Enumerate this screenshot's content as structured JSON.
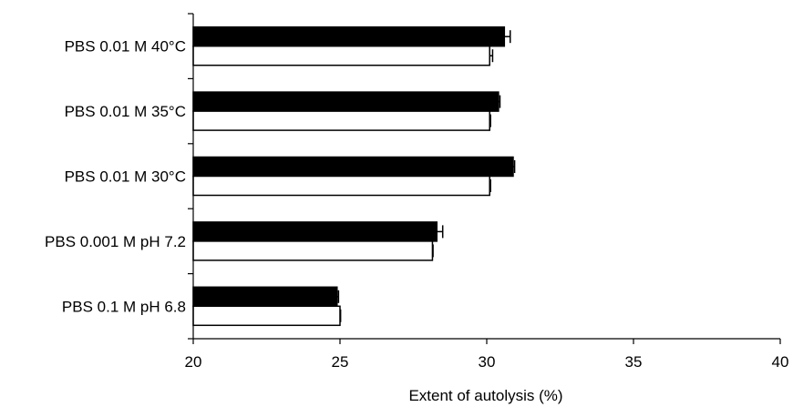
{
  "chart_data": {
    "type": "bar",
    "orientation": "horizontal",
    "categories": [
      "PBS 0.01 M 40°C",
      "PBS 0.01 M 35°C",
      "PBS 0.01 M 30°C",
      "PBS 0.001 M pH 7.2",
      "PBS 0.1 M pH 6.8"
    ],
    "series": [
      {
        "fill": "#000000",
        "values": [
          30.6,
          30.4,
          30.9,
          28.3,
          24.9
        ],
        "errors": [
          0.2,
          0.05,
          0.05,
          0.2,
          0.05
        ]
      },
      {
        "fill": "#ffffff",
        "values": [
          30.1,
          30.1,
          30.1,
          28.15,
          25.0
        ],
        "errors": [
          0.1,
          0.03,
          0.03,
          0.02,
          0.02
        ]
      }
    ],
    "xlabel": "Extent of autolysis (%)",
    "ylabel": "",
    "title": "",
    "xlim": [
      20,
      40
    ],
    "xticks": [
      "20",
      "25",
      "30",
      "35",
      "40"
    ],
    "grid": false,
    "legend": "none"
  }
}
